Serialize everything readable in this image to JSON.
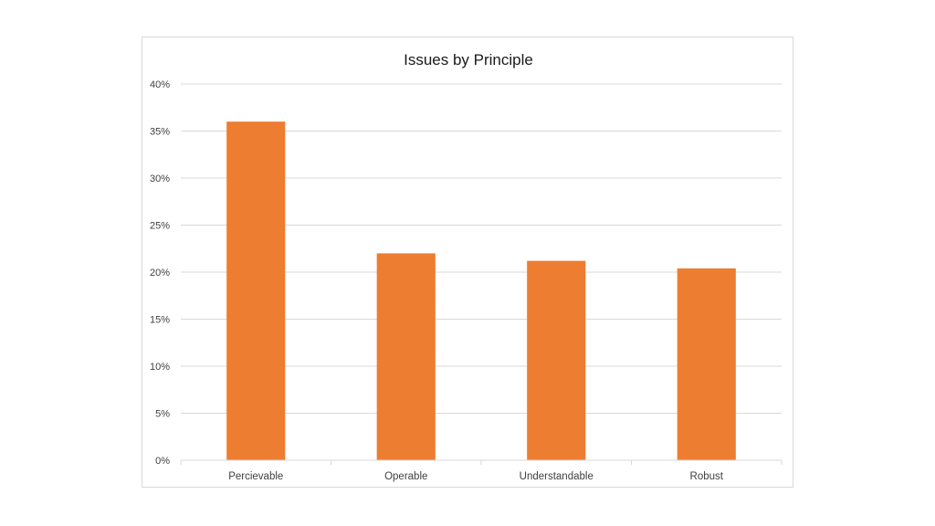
{
  "chart_data": {
    "type": "bar",
    "title": "Issues by Principle",
    "xlabel": "",
    "ylabel": "",
    "categories": [
      "Percievable",
      "Operable",
      "Understandable",
      "Robust"
    ],
    "values": [
      36,
      22,
      21.2,
      20.4
    ],
    "ylim": [
      0,
      40
    ],
    "yticks": [
      0,
      5,
      10,
      15,
      20,
      25,
      30,
      35,
      40
    ],
    "ytick_labels": [
      "0%",
      "5%",
      "10%",
      "15%",
      "20%",
      "25%",
      "30%",
      "35%",
      "40%"
    ],
    "grid": true,
    "legend": "none",
    "bar_color": "#ed7d31",
    "grid_color": "#d9d9d9"
  }
}
